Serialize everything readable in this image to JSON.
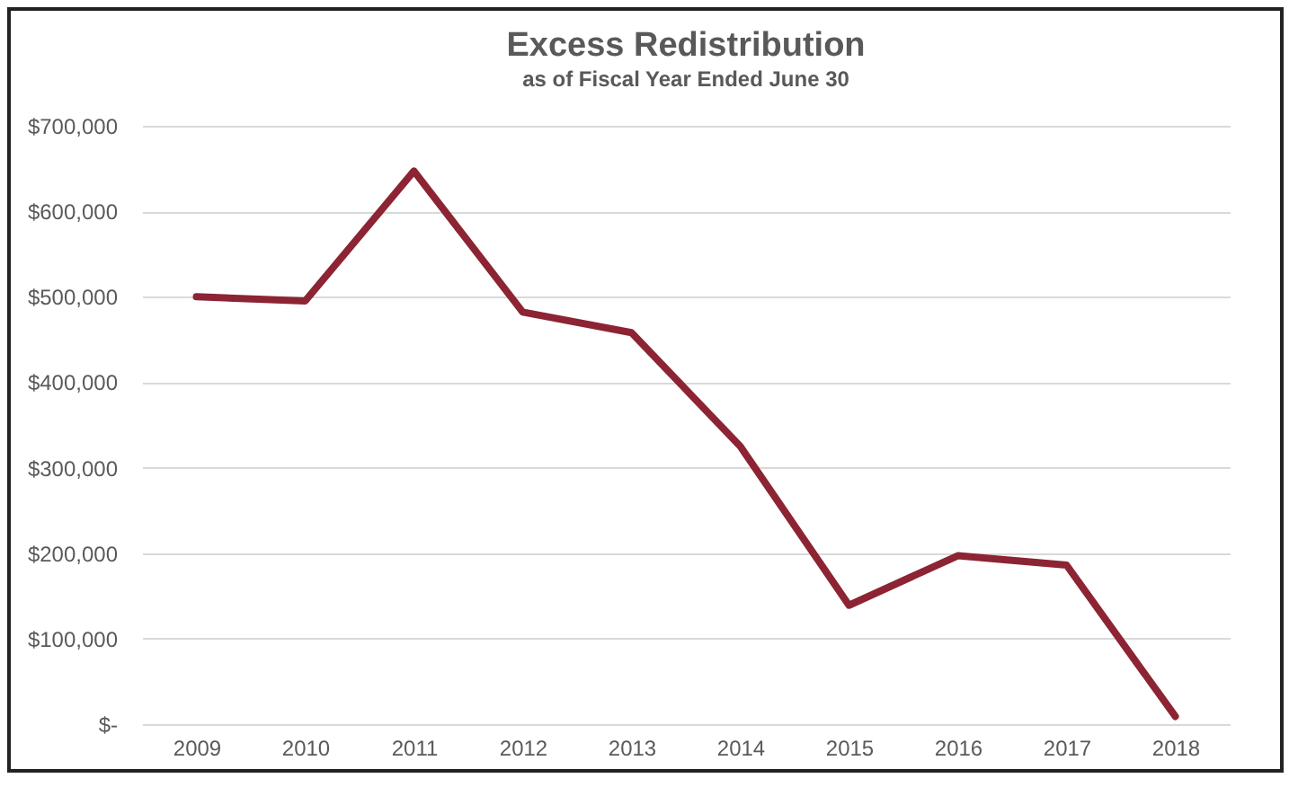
{
  "chart_data": {
    "type": "line",
    "title": "Excess Redistribution",
    "subtitle": "as of Fiscal Year Ended June 30",
    "categories": [
      "2009",
      "2010",
      "2011",
      "2012",
      "2013",
      "2014",
      "2015",
      "2016",
      "2017",
      "2018"
    ],
    "series": [
      {
        "color": "#8c2433",
        "values": [
          500000,
          495000,
          647000,
          482000,
          458000,
          325000,
          139000,
          197000,
          186000,
          9000
        ]
      }
    ],
    "ylim": [
      0,
      700000
    ],
    "yticks": [
      {
        "value": 0,
        "label": "$-"
      },
      {
        "value": 100000,
        "label": "$100,000"
      },
      {
        "value": 200000,
        "label": "$200,000"
      },
      {
        "value": 300000,
        "label": "$300,000"
      },
      {
        "value": 400000,
        "label": "$400,000"
      },
      {
        "value": 500000,
        "label": "$500,000"
      },
      {
        "value": 600000,
        "label": "$600,000"
      },
      {
        "value": 700000,
        "label": "$700,000"
      }
    ],
    "grid": "y",
    "marker": "none",
    "line_style": "solid",
    "legend": false
  }
}
